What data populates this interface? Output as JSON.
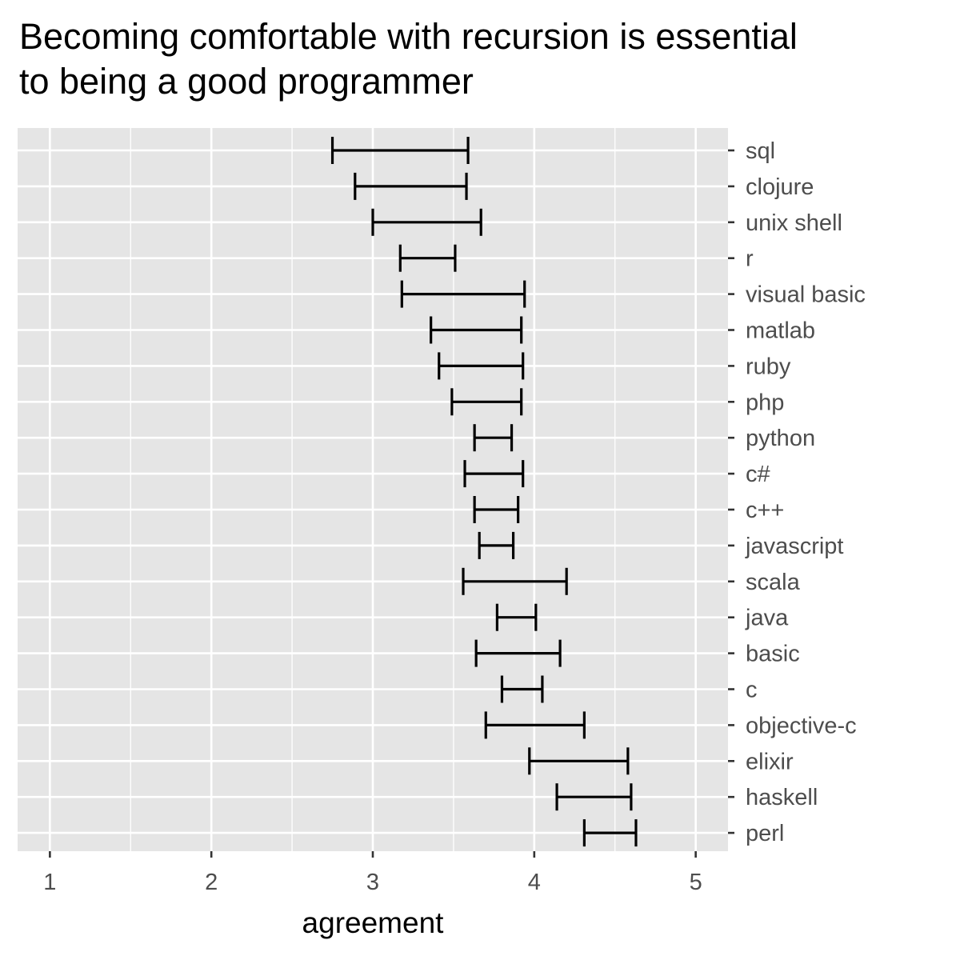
{
  "chart_data": {
    "type": "errorbar",
    "title_lines": [
      "Becoming comfortable with recursion is essential",
      "to being a good programmer"
    ],
    "xlabel": "agreement",
    "ylabel": "",
    "xlim": [
      0.8,
      5.2
    ],
    "x_ticks": [
      1,
      2,
      3,
      4,
      5
    ],
    "grid": true,
    "orientation": "horizontal",
    "categories": [
      "sql",
      "clojure",
      "unix shell",
      "r",
      "visual basic",
      "matlab",
      "ruby",
      "php",
      "python",
      "c#",
      "c++",
      "javascript",
      "scala",
      "java",
      "basic",
      "c",
      "objective-c",
      "elixir",
      "haskell",
      "perl"
    ],
    "lower": [
      2.75,
      2.89,
      3.0,
      3.17,
      3.18,
      3.36,
      3.41,
      3.49,
      3.63,
      3.57,
      3.63,
      3.66,
      3.56,
      3.77,
      3.64,
      3.8,
      3.7,
      3.97,
      4.14,
      4.31
    ],
    "upper": [
      3.59,
      3.58,
      3.67,
      3.51,
      3.94,
      3.92,
      3.93,
      3.92,
      3.86,
      3.93,
      3.9,
      3.87,
      4.2,
      4.01,
      4.16,
      4.05,
      4.31,
      4.58,
      4.6,
      4.63
    ],
    "colors": {
      "panel": "#e5e5e5",
      "grid": "#ffffff",
      "bar": "#000000",
      "tick_text": "#4d4d4d"
    }
  }
}
